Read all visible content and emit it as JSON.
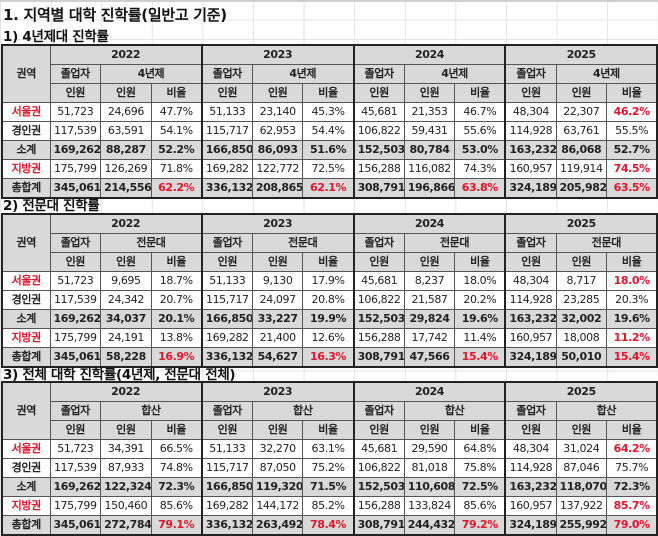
{
  "title": "1. 지역별 대학 진학률(일반고 기준)",
  "accent_color": "#e0162b",
  "header_bg": "#d9d9d9",
  "sections": [
    {
      "subtitle": "1) 4년제대 진학률",
      "region_header": "권역",
      "years": [
        "2022",
        "2023",
        "2024",
        "2025"
      ],
      "group_labels": {
        "graduates": "졸업자",
        "target": "4년제"
      },
      "col_labels": {
        "count": "인원",
        "count2": "인원",
        "rate": "비율"
      },
      "rows": [
        {
          "region": "서울권",
          "region_red": true,
          "values": [
            "51,723",
            "24,696",
            "47.7%",
            "51,133",
            "23,140",
            "45.3%",
            "45,681",
            "21,353",
            "46.7%",
            "48,304",
            "22,307",
            "46.2%"
          ]
        },
        {
          "region": "경인권",
          "region_red": false,
          "values": [
            "117,539",
            "63,591",
            "54.1%",
            "115,717",
            "62,953",
            "54.4%",
            "106,822",
            "59,431",
            "55.6%",
            "114,928",
            "63,761",
            "55.5%"
          ]
        },
        {
          "region": "소계",
          "region_red": false,
          "values": [
            "169,262",
            "88,287",
            "52.2%",
            "166,850",
            "86,093",
            "51.6%",
            "152,503",
            "80,784",
            "53.0%",
            "163,232",
            "86,068",
            "52.7%"
          ]
        },
        {
          "region": "지방권",
          "region_red": true,
          "values": [
            "175,799",
            "126,269",
            "71.8%",
            "169,282",
            "122,772",
            "72.5%",
            "156,288",
            "116,082",
            "74.3%",
            "160,957",
            "119,914",
            "74.5%"
          ]
        },
        {
          "region": "총합계",
          "region_red": false,
          "values": [
            "345,061",
            "214,556",
            "62.2%",
            "336,132",
            "208,865",
            "62.1%",
            "308,791",
            "196,866",
            "63.8%",
            "324,189",
            "205,982",
            "63.5%"
          ]
        }
      ]
    },
    {
      "subtitle": "2) 전문대 진학률",
      "region_header": "권역",
      "years": [
        "2022",
        "2023",
        "2024",
        "2025"
      ],
      "group_labels": {
        "graduates": "졸업자",
        "target": "전문대"
      },
      "col_labels": {
        "count": "인원",
        "count2": "인원",
        "rate": "비율"
      },
      "rows": [
        {
          "region": "서울권",
          "region_red": true,
          "values": [
            "51,723",
            "9,695",
            "18.7%",
            "51,133",
            "9,130",
            "17.9%",
            "45,681",
            "8,237",
            "18.0%",
            "48,304",
            "8,717",
            "18.0%"
          ]
        },
        {
          "region": "경인권",
          "region_red": false,
          "values": [
            "117,539",
            "24,342",
            "20.7%",
            "115,717",
            "24,097",
            "20.8%",
            "106,822",
            "21,587",
            "20.2%",
            "114,928",
            "23,285",
            "20.3%"
          ]
        },
        {
          "region": "소계",
          "region_red": false,
          "values": [
            "169,262",
            "34,037",
            "20.1%",
            "166,850",
            "33,227",
            "19.9%",
            "152,503",
            "29,824",
            "19.6%",
            "163,232",
            "32,002",
            "19.6%"
          ]
        },
        {
          "region": "지방권",
          "region_red": true,
          "values": [
            "175,799",
            "24,191",
            "13.8%",
            "169,282",
            "21,400",
            "12.6%",
            "156,288",
            "17,742",
            "11.4%",
            "160,957",
            "18,008",
            "11.2%"
          ]
        },
        {
          "region": "총합계",
          "region_red": false,
          "values": [
            "345,061",
            "58,228",
            "16.9%",
            "336,132",
            "54,627",
            "16.3%",
            "308,791",
            "47,566",
            "15.4%",
            "324,189",
            "50,010",
            "15.4%"
          ]
        }
      ]
    },
    {
      "subtitle": "3) 전체 대학 진학률(4년제, 전문대 전체)",
      "region_header": "권역",
      "years": [
        "2022",
        "2023",
        "2024",
        "2025"
      ],
      "group_labels": {
        "graduates": "졸업자",
        "target": "합산"
      },
      "col_labels": {
        "count": "인원",
        "count2": "인원",
        "rate": "비율"
      },
      "rows": [
        {
          "region": "서울권",
          "region_red": true,
          "values": [
            "51,723",
            "34,391",
            "66.5%",
            "51,133",
            "32,270",
            "63.1%",
            "45,681",
            "29,590",
            "64.8%",
            "48,304",
            "31,024",
            "64.2%"
          ]
        },
        {
          "region": "경인권",
          "region_red": false,
          "values": [
            "117,539",
            "87,933",
            "74.8%",
            "115,717",
            "87,050",
            "75.2%",
            "106,822",
            "81,018",
            "75.8%",
            "114,928",
            "87,046",
            "75.7%"
          ]
        },
        {
          "region": "소계",
          "region_red": false,
          "values": [
            "169,262",
            "122,324",
            "72.3%",
            "166,850",
            "119,320",
            "71.5%",
            "152,503",
            "110,608",
            "72.5%",
            "163,232",
            "118,070",
            "72.3%"
          ]
        },
        {
          "region": "지방권",
          "region_red": true,
          "values": [
            "175,799",
            "150,460",
            "85.6%",
            "169,282",
            "144,172",
            "85.2%",
            "156,288",
            "133,824",
            "85.6%",
            "160,957",
            "137,922",
            "85.7%"
          ]
        },
        {
          "region": "총합계",
          "region_red": false,
          "values": [
            "345,061",
            "272,784",
            "79.1%",
            "336,132",
            "263,492",
            "78.4%",
            "308,791",
            "244,432",
            "79.2%",
            "324,189",
            "255,992",
            "79.0%"
          ]
        }
      ]
    }
  ]
}
